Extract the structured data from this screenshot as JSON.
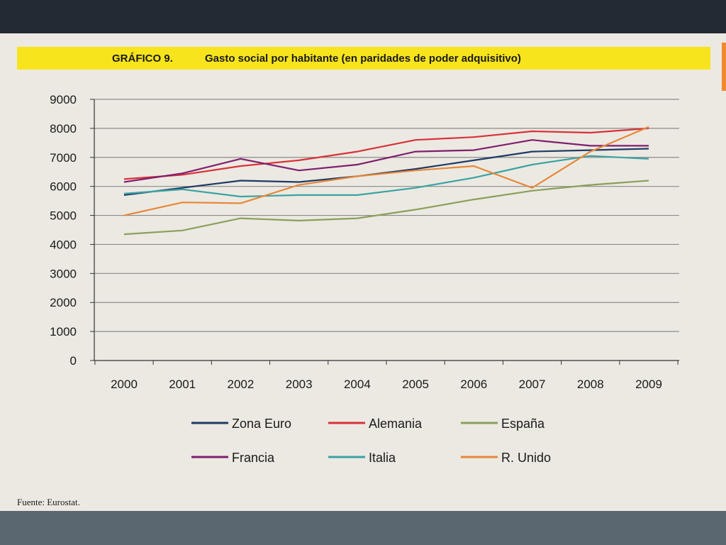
{
  "chart_data": {
    "type": "line",
    "title": "GRÁFICO 9.",
    "subtitle": "Gasto social por habitante (en paridades de poder adquisitivo)",
    "categories": [
      "2000",
      "2001",
      "2002",
      "2003",
      "2004",
      "2005",
      "2006",
      "2007",
      "2008",
      "2009"
    ],
    "yticks": [
      "0",
      "1000",
      "2000",
      "3000",
      "4000",
      "5000",
      "6000",
      "7000",
      "8000",
      "9000"
    ],
    "ylim": [
      0,
      9000
    ],
    "grid": true,
    "legend_position": "bottom",
    "series": [
      {
        "name": "Zona Euro",
        "color": "#1f3a64",
        "values": [
          5700,
          5950,
          6200,
          6150,
          6350,
          6600,
          6900,
          7200,
          7250,
          7300
        ]
      },
      {
        "name": "Alemania",
        "color": "#d8323a",
        "values": [
          6250,
          6400,
          6700,
          6900,
          7200,
          7600,
          7700,
          7900,
          7850,
          8000
        ]
      },
      {
        "name": "España",
        "color": "#8aa05a",
        "values": [
          4350,
          4480,
          4900,
          4820,
          4900,
          5200,
          5550,
          5850,
          6050,
          6200
        ]
      },
      {
        "name": "Francia",
        "color": "#7e1f6e",
        "values": [
          6150,
          6450,
          6950,
          6550,
          6750,
          7200,
          7250,
          7600,
          7400,
          7400
        ]
      },
      {
        "name": "Italia",
        "color": "#3aa3a3",
        "values": [
          5750,
          5900,
          5650,
          5700,
          5700,
          5950,
          6300,
          6750,
          7050,
          6950
        ]
      },
      {
        "name": "R. Unido",
        "color": "#e6883a",
        "values": [
          5000,
          5450,
          5420,
          6050,
          6350,
          6550,
          6700,
          5950,
          7200,
          8050
        ]
      }
    ],
    "source": "Fuente: Eurostat."
  },
  "colors": {
    "title_band": "#f7e41c",
    "gridline": "#8a8a8a",
    "axis": "#333333"
  }
}
